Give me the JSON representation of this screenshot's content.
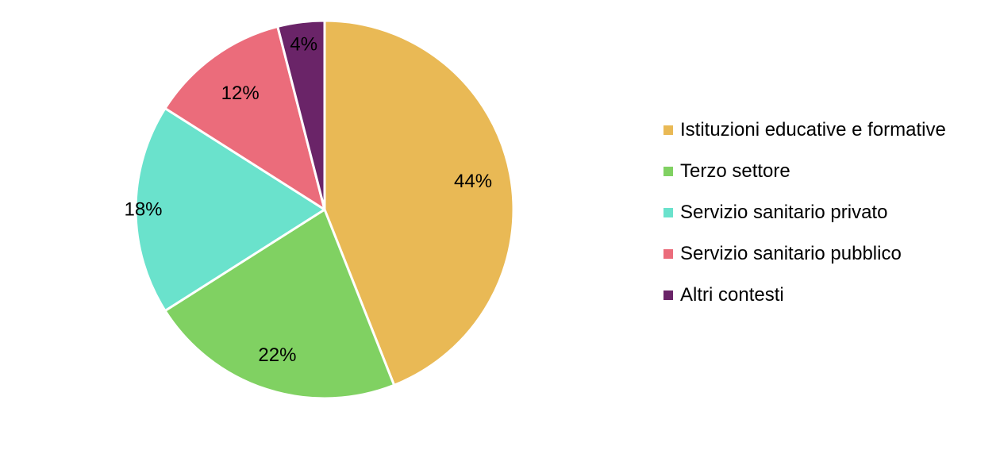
{
  "chart_data": {
    "type": "pie",
    "title": "",
    "start_angle": "12 o'clock",
    "direction": "clockwise",
    "legend_position": "right",
    "slices": [
      {
        "name": "Istituzioni educative e formative",
        "value": 44,
        "label": "44%",
        "color": "#E9B955"
      },
      {
        "name": "Terzo settore",
        "value": 22,
        "label": "22%",
        "color": "#80D162"
      },
      {
        "name": "Servizio sanitario privato",
        "value": 18,
        "label": "18%",
        "color": "#6AE2CC"
      },
      {
        "name": "Servizio sanitario pubblico",
        "value": 12,
        "label": "12%",
        "color": "#EB6C7B"
      },
      {
        "name": "Altri contesti",
        "value": 4,
        "label": "4%",
        "color": "#6A2468"
      }
    ]
  }
}
